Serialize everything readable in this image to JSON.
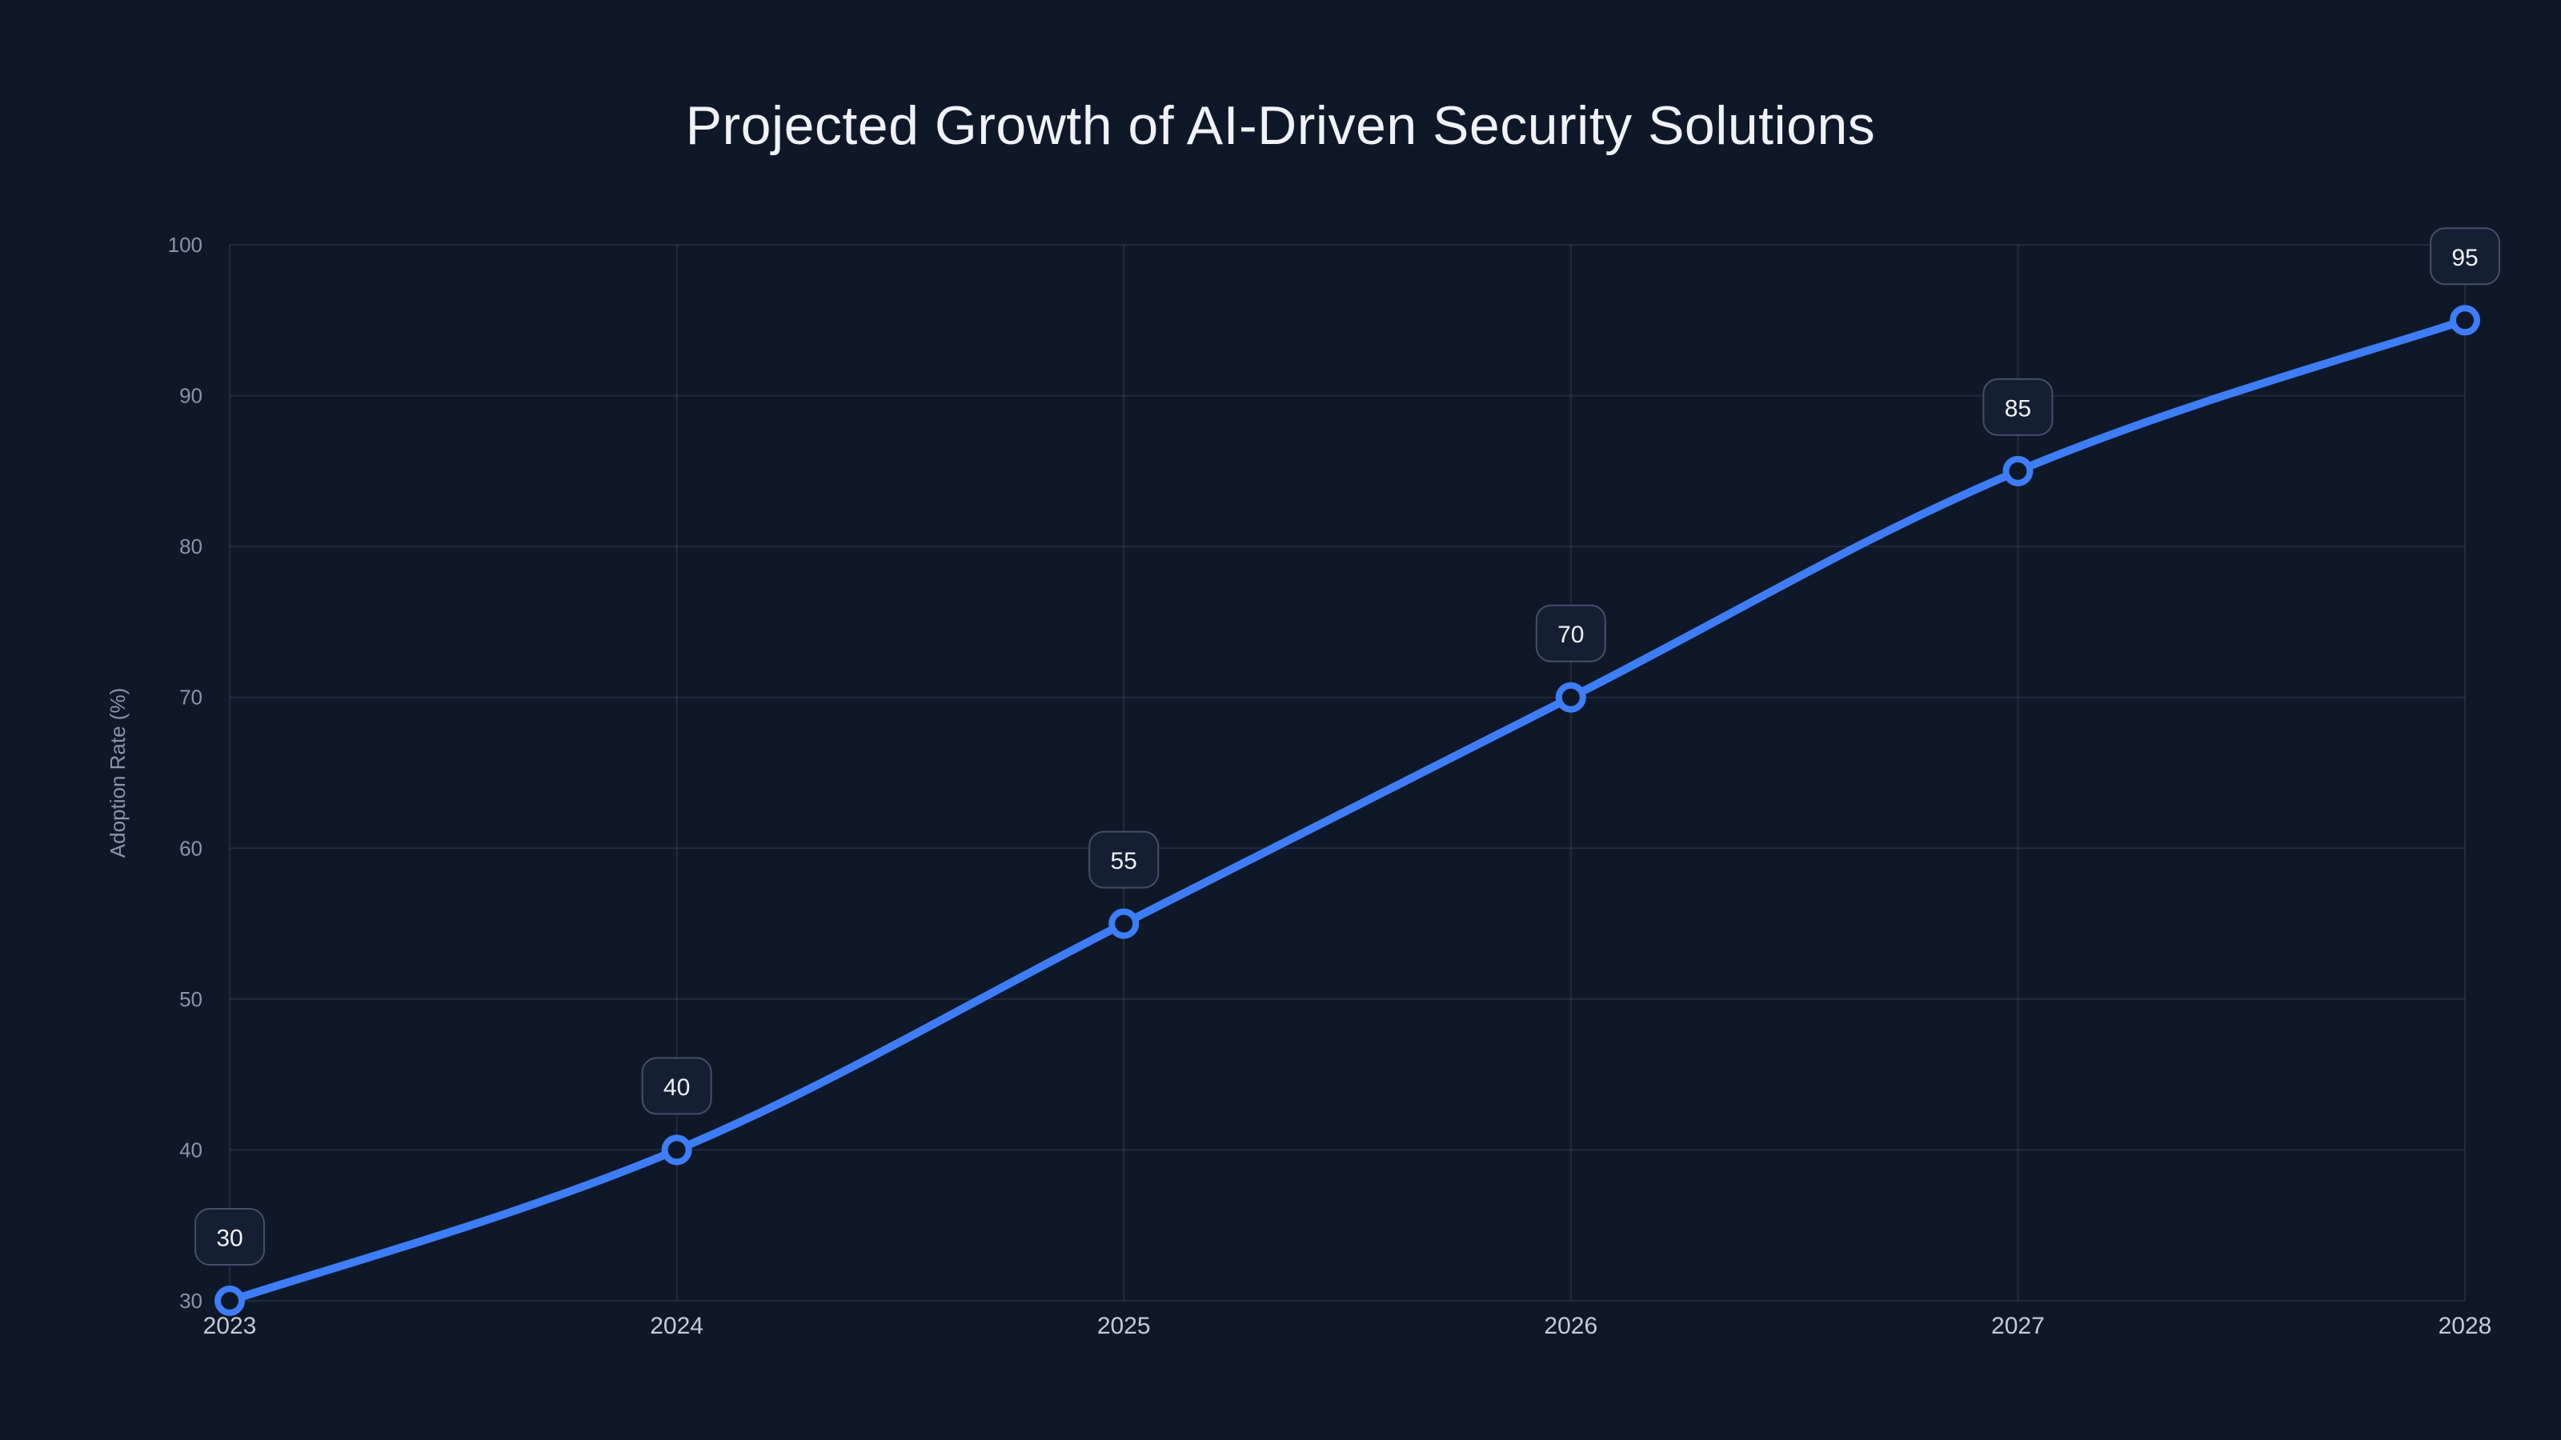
{
  "chart_data": {
    "type": "line",
    "title": "Projected Growth of AI-Driven Security Solutions",
    "xlabel": "",
    "ylabel": "Adoption Rate (%)",
    "categories": [
      "2023",
      "2024",
      "2025",
      "2026",
      "2027",
      "2028"
    ],
    "series": [
      {
        "name": "Adoption Rate (%)",
        "values": [
          30,
          40,
          55,
          70,
          85,
          95
        ]
      }
    ],
    "point_labels": [
      "30",
      "40",
      "55",
      "70",
      "85",
      "95"
    ],
    "ylim": [
      30,
      100
    ],
    "yticks": [
      30,
      40,
      50,
      60,
      70,
      80,
      90,
      100
    ],
    "grid": true,
    "legend": false,
    "colors": {
      "background": "#0f1829",
      "line": "#3d7ef8",
      "marker_ring": "#3d7ef8",
      "marker_fill": "#0f1829",
      "grid": "rgba(148,163,184,0.14)",
      "y_tick_text": "#8b95a9",
      "x_tick_text": "#c3cbd8",
      "axis_label_text": "#8b95a9",
      "title_text": "#eff3f9",
      "badge_fill": "#151f34",
      "badge_border": "#454f66",
      "badge_text": "#eef2f8"
    }
  }
}
